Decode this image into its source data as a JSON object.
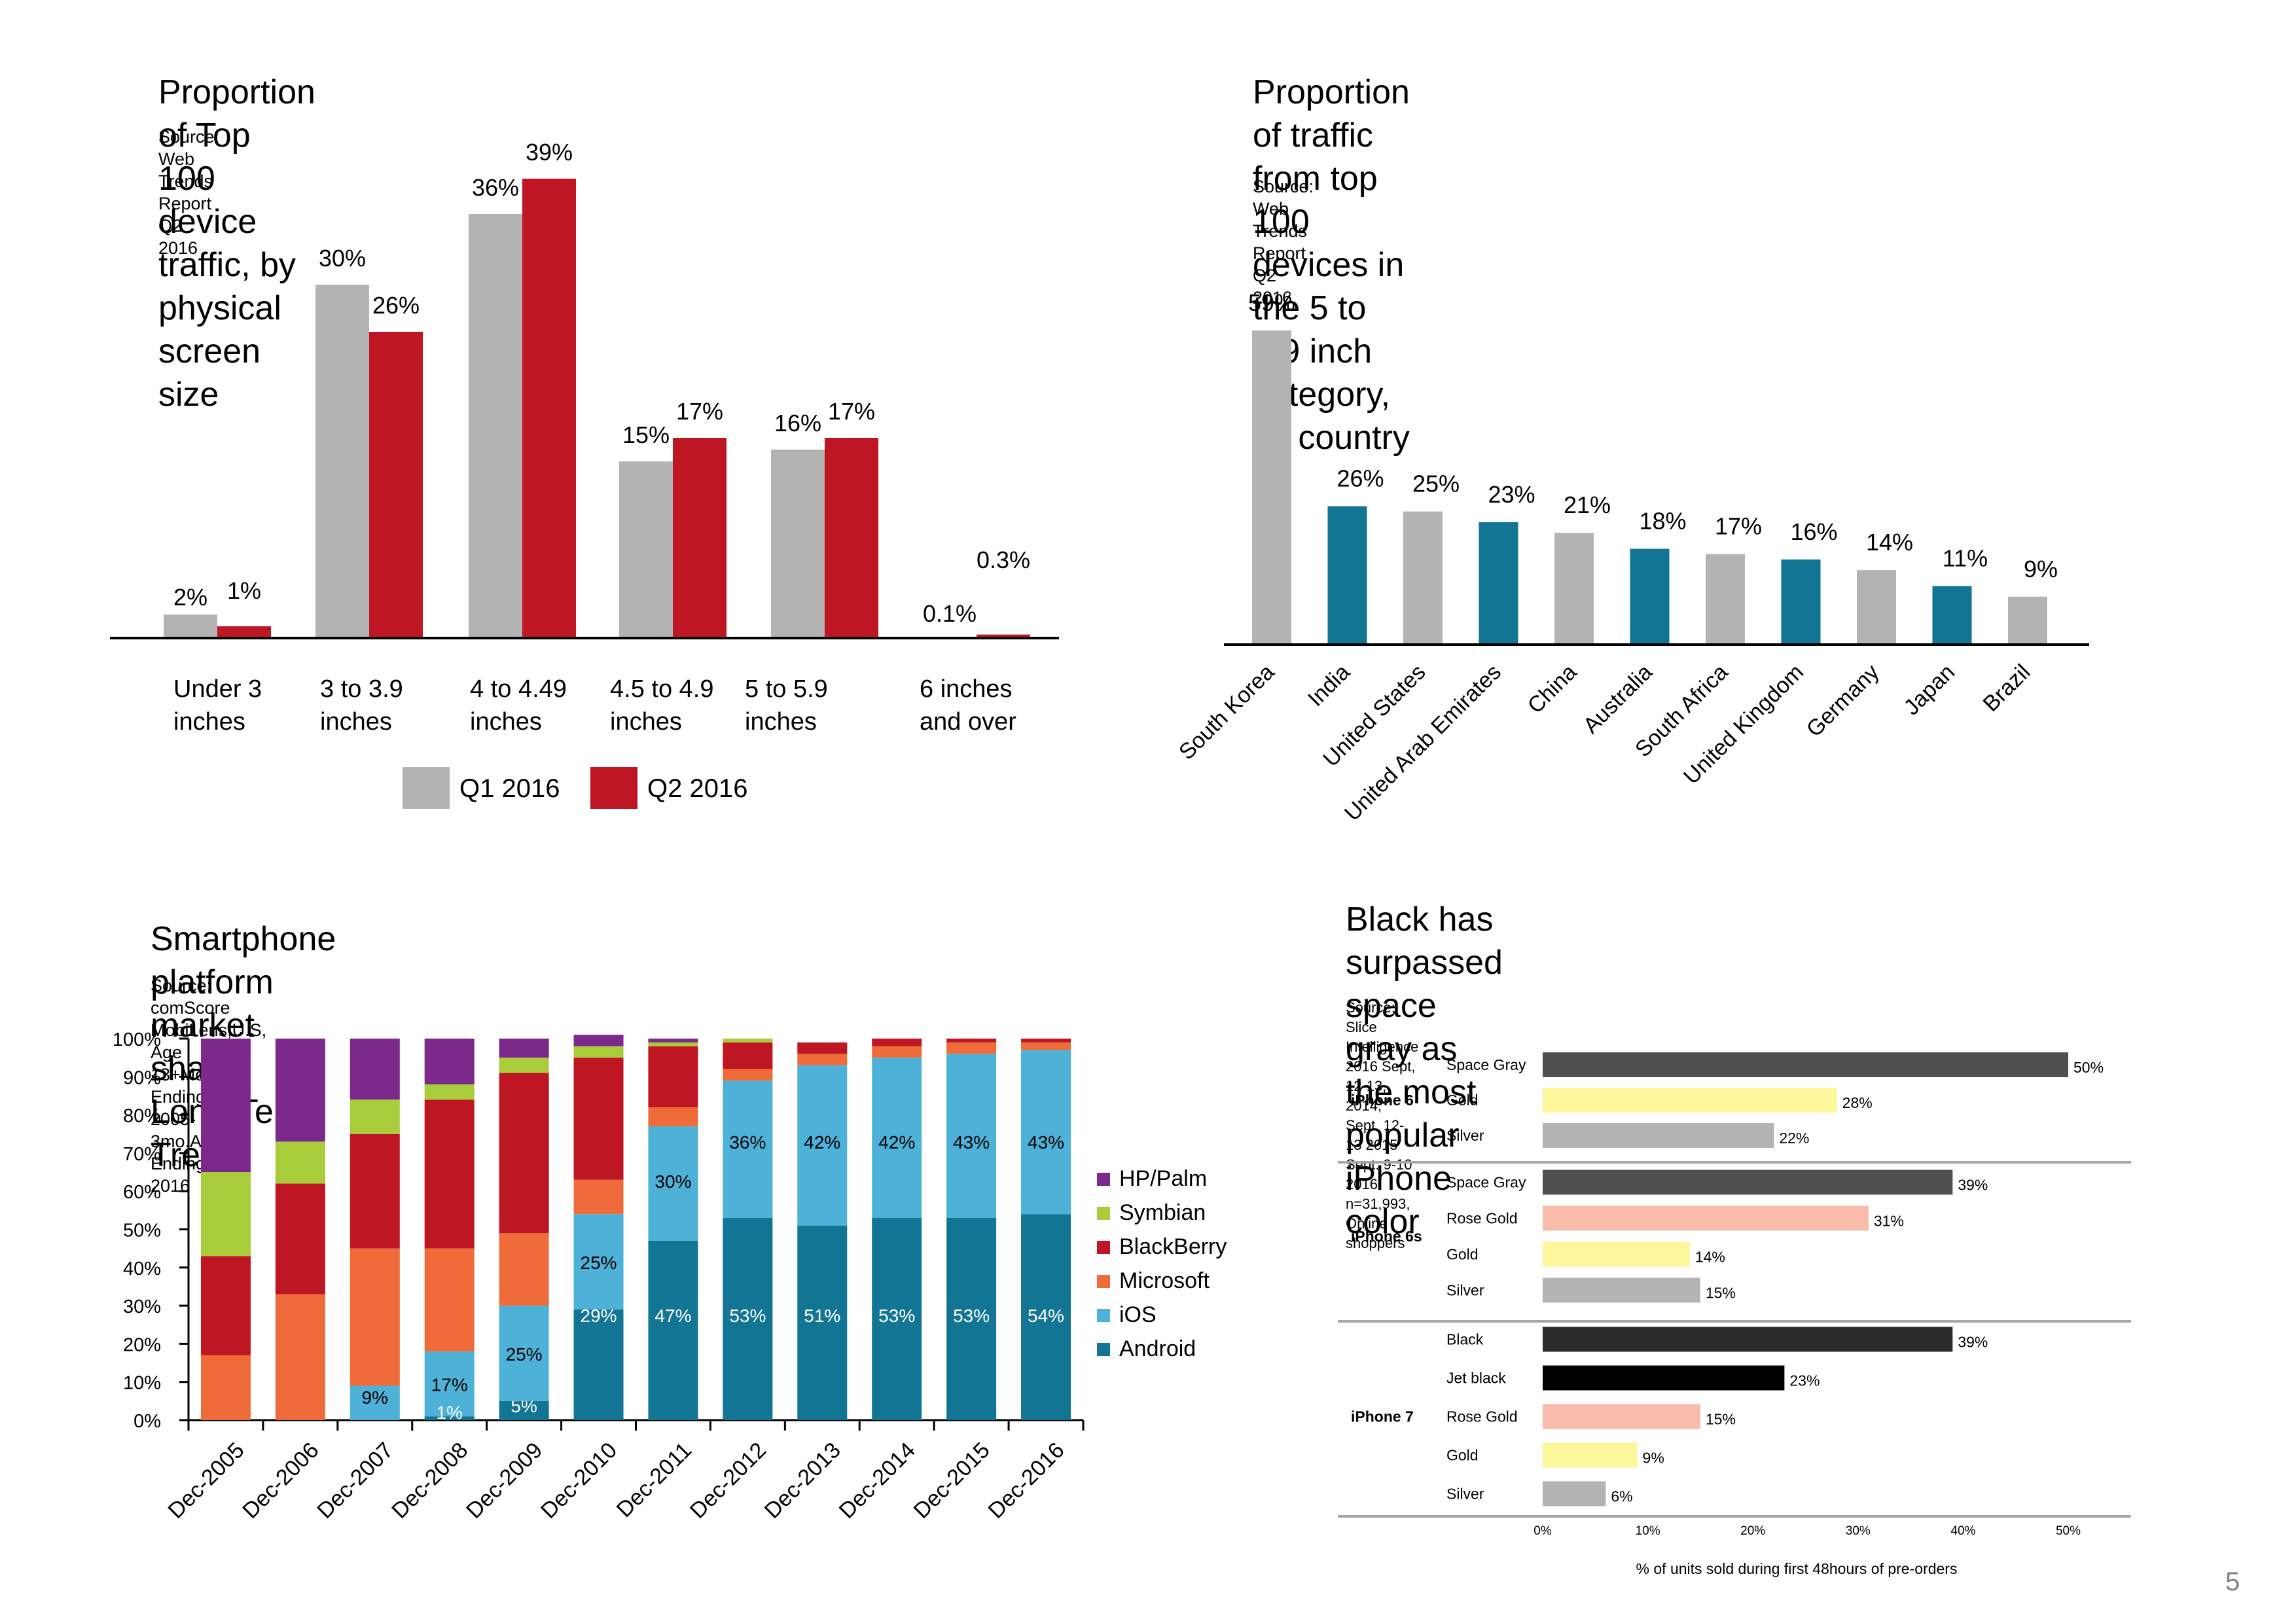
{
  "page_number": "5",
  "chart_data": [
    {
      "id": "screen-size",
      "type": "bar",
      "title": "Proportion of Top 100 device traffic, by physical screen size",
      "source": "Source: Web Trends Report Q2 2016",
      "categories": [
        "Under 3 inches",
        "3 to 3.9 inches",
        "4 to 4.49 inches",
        "4.5 to 4.9 inches",
        "5 to 5.9 inches",
        "6 inches and over"
      ],
      "category_lines": [
        [
          "Under 3",
          "inches"
        ],
        [
          "3 to 3.9",
          "inches"
        ],
        [
          "4 to 4.49",
          "inches"
        ],
        [
          "4.5 to 4.9",
          "inches"
        ],
        [
          "5 to 5.9",
          "inches"
        ],
        [
          "6 inches",
          "and over"
        ]
      ],
      "series": [
        {
          "name": "Q1 2016",
          "color": "#b3b3b3",
          "values": [
            2,
            30,
            36,
            15,
            16,
            0.1
          ],
          "labels": [
            "2%",
            "30%",
            "36%",
            "15%",
            "16%",
            "0.1%"
          ]
        },
        {
          "name": "Q2 2016",
          "color": "#be1622",
          "values": [
            1,
            26,
            39,
            17,
            17,
            0.3
          ],
          "labels": [
            "1%",
            "26%",
            "39%",
            "17%",
            "17%",
            "0.3%"
          ]
        }
      ],
      "ylim": [
        0,
        40
      ],
      "grid": false,
      "legend": "bottom"
    },
    {
      "id": "country",
      "type": "bar",
      "title": "Proportion of traffic from top 100 devices in the 5 to 5.9 inch category, by country",
      "title_lines": [
        "Proportion of traffic from top 100 devices in the 5 to 5.9 inch",
        "category, by country"
      ],
      "source": "Source: Web Trends Report Q2 2016",
      "categories": [
        "South Korea",
        "India",
        "United States",
        "United Arab Emirates",
        "China",
        "Australia",
        "South Africa",
        "United Kingdom",
        "Germany",
        "Japan",
        "Brazil"
      ],
      "values": [
        59,
        26,
        25,
        23,
        21,
        18,
        17,
        16,
        14,
        11,
        9
      ],
      "labels": [
        "59%",
        "26%",
        "25%",
        "23%",
        "21%",
        "18%",
        "17%",
        "16%",
        "14%",
        "11%",
        "9%"
      ],
      "colors": [
        "#b3b3b3",
        "#127594"
      ],
      "ylim": [
        0,
        60
      ],
      "grid": false,
      "legend": "none"
    },
    {
      "id": "platform",
      "type": "bar",
      "stacked": true,
      "title": "Smartphone platform market share: Long-Term Trend",
      "source": "Source: comScore MobiLens,U.S, Age 13+Mo.Avg. Ending Dec 2005-3mo.Avg. EndingDec 2016",
      "categories": [
        "Dec-2005",
        "Dec-2006",
        "Dec-2007",
        "Dec-2008",
        "Dec-2009",
        "Dec-2010",
        "Dec-2011",
        "Dec-2012",
        "Dec-2013",
        "Dec-2014",
        "Dec-2015",
        "Dec-2016"
      ],
      "yticks": [
        "0%",
        "10%",
        "20%",
        "30%",
        "40%",
        "50%",
        "60%",
        "70%",
        "80%",
        "90%",
        "100%"
      ],
      "ylim": [
        0,
        100
      ],
      "series": [
        {
          "name": "Android",
          "color": "#127594",
          "values": [
            0,
            0,
            0,
            1,
            5,
            29,
            47,
            53,
            51,
            53,
            53,
            54
          ],
          "labels": [
            "",
            "",
            "",
            "",
            "5%",
            "29%",
            "47%",
            "53%",
            "51%",
            "53%",
            "53%",
            "54%"
          ]
        },
        {
          "name": "iOS",
          "color": "#4eb1d7",
          "values": [
            0,
            0,
            9,
            17,
            25,
            25,
            30,
            36,
            42,
            42,
            43,
            43
          ],
          "labels": [
            "",
            "",
            "9%",
            "17%",
            "25%",
            "25%",
            "30%",
            "36%",
            "42%",
            "42%",
            "43%",
            "43%"
          ]
        },
        {
          "name": "Microsoft",
          "color": "#ef6c3a",
          "values": [
            17,
            33,
            36,
            27,
            19,
            9,
            5,
            3,
            3,
            3,
            3,
            2
          ],
          "labels": []
        },
        {
          "name": "BlackBerry",
          "color": "#be1622",
          "values": [
            26,
            29,
            30,
            39,
            42,
            32,
            16,
            7,
            3,
            2,
            1,
            1
          ],
          "labels": []
        },
        {
          "name": "Symbian",
          "color": "#a9cc3a",
          "values": [
            22,
            11,
            9,
            4,
            4,
            3,
            1,
            1,
            0,
            0,
            0,
            0
          ],
          "labels": []
        },
        {
          "name": "HP/Palm",
          "color": "#7b2a8c",
          "values": [
            35,
            27,
            16,
            12,
            5,
            3,
            1,
            0,
            0,
            0,
            0,
            0
          ],
          "labels": []
        }
      ],
      "extra_labels": [
        {
          "category": "Dec-2008",
          "text": "1%"
        }
      ],
      "legend_order": [
        "HP/Palm",
        "Symbian",
        "BlackBerry",
        "Microsoft",
        "iOS",
        "Android"
      ],
      "legend": "right",
      "grid": false
    },
    {
      "id": "iphone-color",
      "type": "bar",
      "orientation": "horizontal",
      "title": "Black has surpassed space gray as the most popular iPhone color",
      "title_lines": [
        "Black has surpassed space gray as the most popular",
        "iPhone color"
      ],
      "source": "Source: Slice Intelligence 2016 Sept, 12-13, 2014, Sept. 12-13 2015 Sept. 9-10 2016. n=31,993, Online shoppers",
      "source_lines": [
        "Source: Slice Intelligence 2016 Sept, 12-13, 2014, Sept. 12-13 2015 Sept. 9-10 2016. n=31,993, Online",
        "shoppers"
      ],
      "groups": [
        {
          "name": "iPhone 6",
          "bars": [
            {
              "label": "Space Gray",
              "value": 50,
              "text": "50%",
              "color": "#505050"
            },
            {
              "label": "Gold",
              "value": 28,
              "text": "28%",
              "color": "#fcf79a"
            },
            {
              "label": "Silver",
              "value": 22,
              "text": "22%",
              "color": "#b3b3b3"
            }
          ]
        },
        {
          "name": "iPhone 6s",
          "bars": [
            {
              "label": "Space Gray",
              "value": 39,
              "text": "39%",
              "color": "#505050"
            },
            {
              "label": "Rose Gold",
              "value": 31,
              "text": "31%",
              "color": "#f9bcaa"
            },
            {
              "label": "Gold",
              "value": 14,
              "text": "14%",
              "color": "#fcf79a"
            },
            {
              "label": "Silver",
              "value": 15,
              "text": "15%",
              "color": "#b3b3b3"
            }
          ]
        },
        {
          "name": "iPhone 7",
          "bars": [
            {
              "label": "Black",
              "value": 39,
              "text": "39%",
              "color": "#2c2c2c"
            },
            {
              "label": "Jet black",
              "value": 23,
              "text": "23%",
              "color": "#000000"
            },
            {
              "label": "Rose Gold",
              "value": 15,
              "text": "15%",
              "color": "#f9bcaa"
            },
            {
              "label": "Gold",
              "value": 9,
              "text": "9%",
              "color": "#fcf79a"
            },
            {
              "label": "Silver",
              "value": 6,
              "text": "6%",
              "color": "#b3b3b3"
            }
          ]
        }
      ],
      "xticks": [
        "0%",
        "10%",
        "20%",
        "30%",
        "40%",
        "50%"
      ],
      "xlim": [
        0,
        50
      ],
      "xlabel": "% of units sold during first 48hours of pre-orders",
      "grid": false,
      "legend": "none"
    }
  ]
}
